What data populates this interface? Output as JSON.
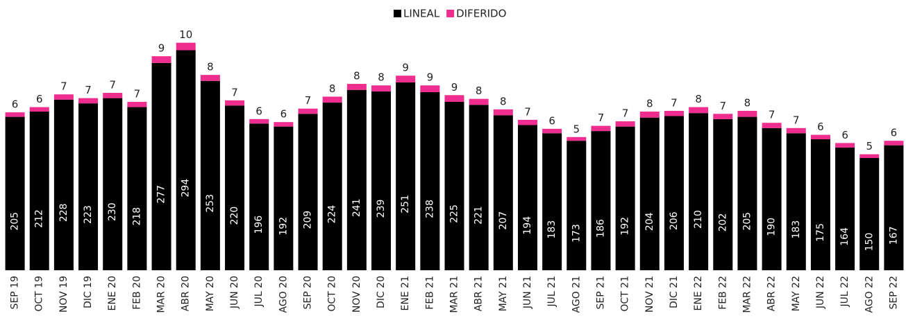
{
  "chart_data": {
    "type": "stacked_bar",
    "categories": [
      "SEP 19",
      "OCT 19",
      "NOV 19",
      "DIC 19",
      "ENE 20",
      "FEB 20",
      "MAR 20",
      "ABR 20",
      "MAY 20",
      "JUN 20",
      "JUL 20",
      "AGO 20",
      "SEP 20",
      "OCT 20",
      "NOV 20",
      "DIC 20",
      "ENE 21",
      "FEB 21",
      "MAR 21",
      "ABR 21",
      "MAY 21",
      "JUN 21",
      "JUL 21",
      "AGO 21",
      "SEP 21",
      "OCT 21",
      "NOV 21",
      "DIC 21",
      "ENE 22",
      "FEB 22",
      "MAR 22",
      "ABR 22",
      "MAY 22",
      "JUN 22",
      "JUL 22",
      "AGO 22",
      "SEP 22"
    ],
    "series": [
      {
        "name": "LINEAL",
        "color": "#000000",
        "values": [
          205,
          212,
          228,
          223,
          230,
          218,
          277,
          294,
          253,
          220,
          196,
          192,
          209,
          224,
          241,
          239,
          251,
          238,
          225,
          221,
          207,
          194,
          183,
          173,
          186,
          192,
          204,
          206,
          210,
          202,
          205,
          190,
          183,
          175,
          164,
          150,
          167
        ]
      },
      {
        "name": "DIFERIDO",
        "color": "#ee2d8f",
        "values": [
          6,
          6,
          7,
          7,
          7,
          7,
          9,
          10,
          8,
          7,
          6,
          6,
          7,
          8,
          8,
          8,
          9,
          9,
          9,
          8,
          8,
          7,
          6,
          5,
          7,
          7,
          8,
          7,
          8,
          7,
          8,
          7,
          7,
          6,
          6,
          5,
          6
        ]
      }
    ],
    "legend": "top"
  }
}
